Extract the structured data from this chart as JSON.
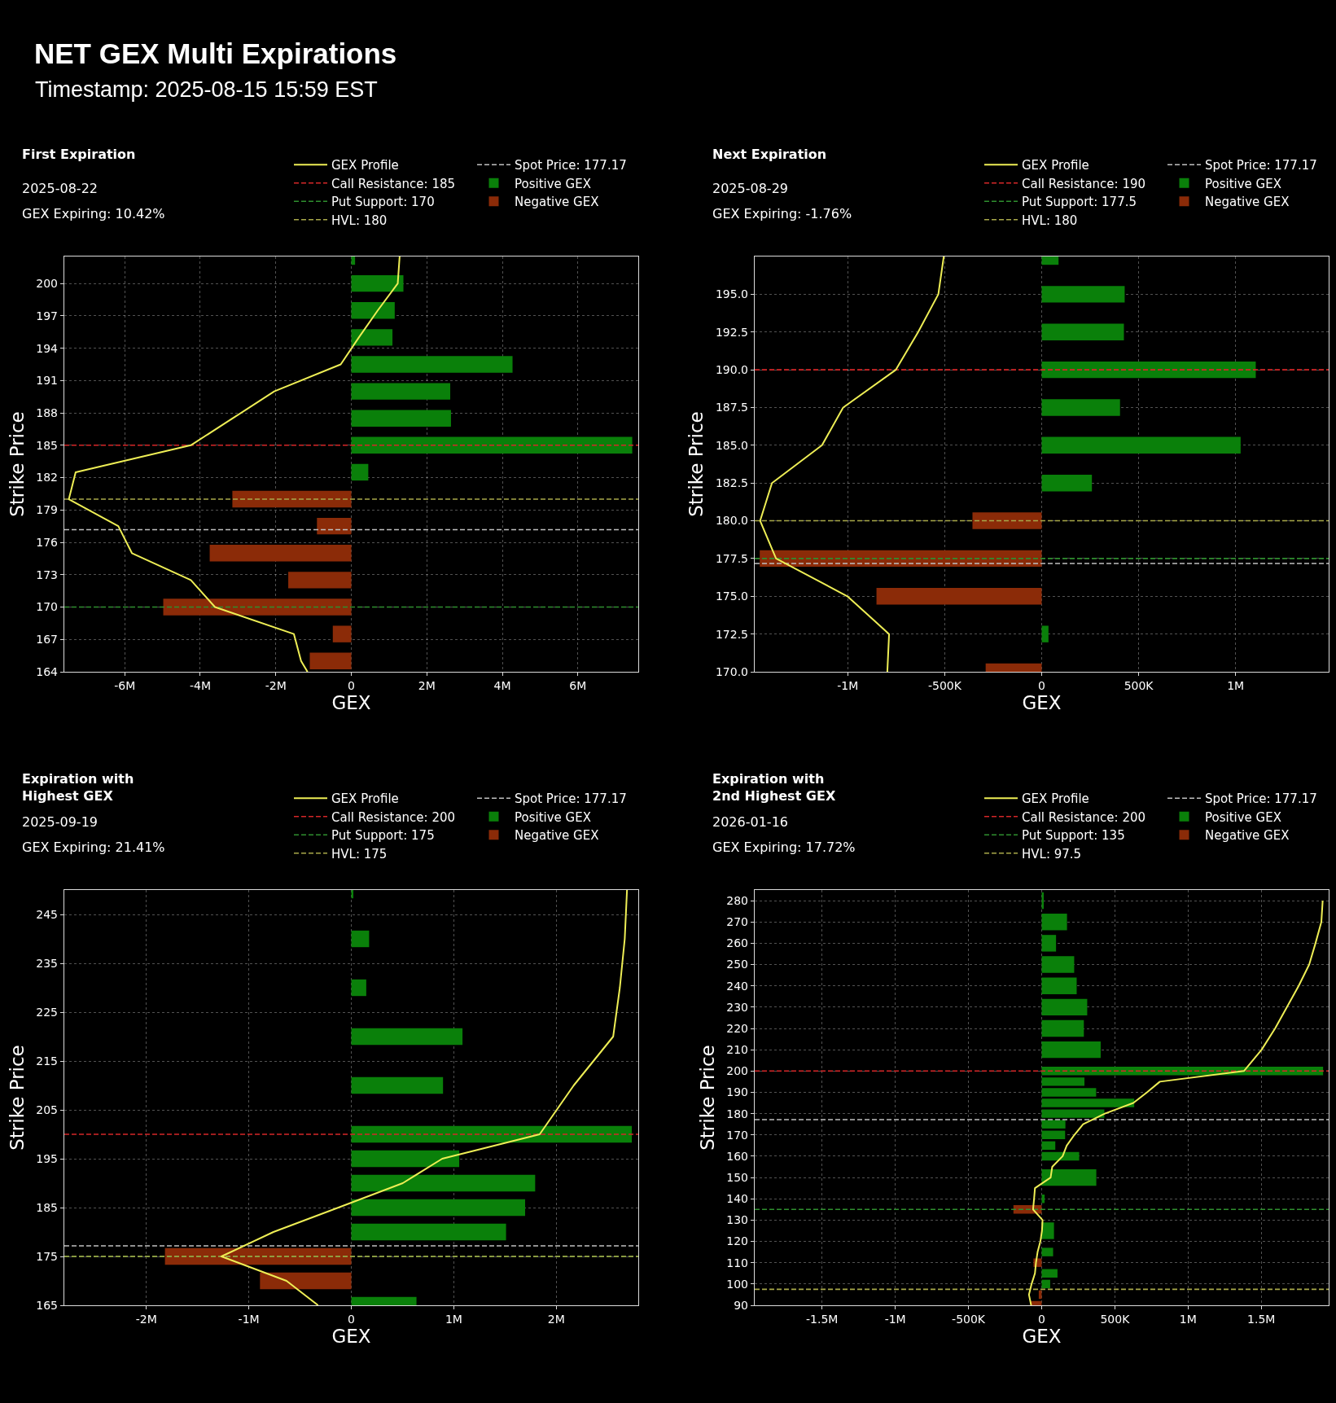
{
  "chart_data": [
    {
      "type": "other",
      "title": "NET GEX Multi Expirations",
      "subtitle": "Timestamp: 2025-08-15 15:59 EST"
    },
    {
      "type": "bar",
      "orientation": "horizontal",
      "title": "First Expiration",
      "subtitle": "2025-08-22",
      "annotations": [
        "GEX Expiring: 10.42%"
      ],
      "xlabel": "GEX",
      "ylabel": "Strike Price",
      "x": [
        165,
        167.5,
        170,
        172.5,
        175,
        177.5,
        180,
        182.5,
        185,
        187.5,
        190,
        192.5,
        195,
        197.5,
        200,
        202.5
      ],
      "series": [
        {
          "name": "GEX Profile",
          "type": "line",
          "color": "#eeee55",
          "x": [
            164,
            165,
            167.5,
            170,
            172.5,
            175,
            177.5,
            180,
            182.5,
            185,
            187.5,
            190,
            192.5,
            195,
            197.5,
            200,
            202.5
          ],
          "values": [
            -1160000,
            -1330000,
            -1520000,
            -3610000,
            -4250000,
            -5810000,
            -6170000,
            -7480000,
            -7300000,
            -4250000,
            -3140000,
            -2040000,
            -280000,
            200000,
            700000,
            1230000,
            1280000
          ]
        },
        {
          "name": "Positive GEX",
          "color": "#0a800a",
          "values": [
            null,
            null,
            null,
            null,
            null,
            null,
            null,
            450000,
            7440000,
            2640000,
            2620000,
            4270000,
            1090000,
            1150000,
            1380000,
            100000
          ]
        },
        {
          "name": "Negative GEX",
          "color": "#8b2b08",
          "values": [
            -1100000,
            -490000,
            -4980000,
            -1670000,
            -3750000,
            -910000,
            -3150000,
            null,
            null,
            null,
            null,
            null,
            null,
            null,
            null,
            null
          ]
        }
      ],
      "ref_lines": [
        {
          "axis": "y",
          "value": 185,
          "label": "Call Resistance: 185",
          "color": "#d62728",
          "line_style": "dashed"
        },
        {
          "axis": "y",
          "value": 170,
          "label": "Put Support: 170",
          "color": "#2f8f2f",
          "line_style": "dashed"
        },
        {
          "axis": "y",
          "value": 180,
          "label": "HVL: 180",
          "color": "#a9a94a",
          "line_style": "dashed"
        },
        {
          "axis": "y",
          "value": 177.17,
          "label": "Spot Price: 177.17",
          "color": "#c0c0c0",
          "line_style": "dashed"
        }
      ],
      "xlim": [
        -7600000,
        7600000
      ],
      "xticks": [
        {
          "value": -6000000,
          "label": "-6M"
        },
        {
          "value": -4000000,
          "label": "-4M"
        },
        {
          "value": -2000000,
          "label": "-2M"
        },
        0,
        {
          "value": 2000000,
          "label": "2M"
        },
        {
          "value": 4000000,
          "label": "4M"
        },
        {
          "value": 6000000,
          "label": "6M"
        }
      ],
      "ylim": [
        164,
        202.5
      ],
      "yticks": [
        164,
        167,
        170,
        173,
        176,
        179,
        182,
        185,
        188,
        191,
        194,
        197,
        200
      ],
      "grid": true,
      "legend": "top right"
    },
    {
      "type": "bar",
      "orientation": "horizontal",
      "title": "Next Expiration",
      "subtitle": "2025-08-29",
      "annotations": [
        "GEX Expiring: -1.76%"
      ],
      "xlabel": "GEX",
      "ylabel": "Strike Price",
      "x": [
        170,
        172.5,
        175,
        177.5,
        180,
        182.5,
        185,
        187.5,
        190,
        192.5,
        195,
        197.5
      ],
      "series": [
        {
          "name": "GEX Profile",
          "type": "line",
          "color": "#eeee55",
          "x": [
            170,
            172.5,
            175,
            177.5,
            180,
            182.5,
            185,
            187.5,
            190,
            192.5,
            195,
            197.5
          ],
          "values": [
            -796000,
            -787000,
            -1002000,
            -1370000,
            -1452000,
            -1391000,
            -1133000,
            -1024000,
            -752000,
            -637000,
            -533000,
            -505000
          ]
        },
        {
          "name": "Positive GEX",
          "color": "#0a800a",
          "values": [
            null,
            35000,
            null,
            null,
            null,
            259000,
            1026000,
            404000,
            1104000,
            424000,
            428000,
            87000
          ]
        },
        {
          "name": "Negative GEX",
          "color": "#8b2b08",
          "values": [
            -289000,
            null,
            -852000,
            -1454000,
            -357000,
            null,
            null,
            null,
            null,
            null,
            null,
            null
          ]
        }
      ],
      "ref_lines": [
        {
          "axis": "y",
          "value": 190,
          "label": "Call Resistance: 190",
          "color": "#d62728",
          "line_style": "dashed"
        },
        {
          "axis": "y",
          "value": 177.5,
          "label": "Put Support: 177.5",
          "color": "#2f8f2f",
          "line_style": "dashed"
        },
        {
          "axis": "y",
          "value": 180,
          "label": "HVL: 180",
          "color": "#a9a94a",
          "line_style": "dashed"
        },
        {
          "axis": "y",
          "value": 177.17,
          "label": "Spot Price: 177.17",
          "color": "#c0c0c0",
          "line_style": "dashed"
        }
      ],
      "xlim": [
        -1480000,
        1480000
      ],
      "xticks": [
        {
          "value": -1000000,
          "label": "-1M"
        },
        {
          "value": -500000,
          "label": "-500K"
        },
        0,
        {
          "value": 500000,
          "label": "500K"
        },
        {
          "value": 1000000,
          "label": "1M"
        }
      ],
      "ylim": [
        170,
        197.5
      ],
      "yticks": [
        {
          "value": 170,
          "label": "170.0"
        },
        172.5,
        {
          "value": 175,
          "label": "175.0"
        },
        177.5,
        {
          "value": 180,
          "label": "180.0"
        },
        182.5,
        {
          "value": 185,
          "label": "185.0"
        },
        187.5,
        {
          "value": 190,
          "label": "190.0"
        },
        192.5,
        {
          "value": 195,
          "label": "195.0"
        }
      ],
      "grid": true,
      "legend": "top right"
    },
    {
      "type": "bar",
      "orientation": "horizontal",
      "title": "Expiration with\nHighest GEX",
      "subtitle": "2025-09-19",
      "annotations": [
        "GEX Expiring: 21.41%"
      ],
      "xlabel": "GEX",
      "ylabel": "Strike Price",
      "x": [
        165,
        170,
        175,
        180,
        185,
        190,
        195,
        200,
        210,
        220,
        230,
        240,
        250
      ],
      "series": [
        {
          "name": "GEX Profile",
          "type": "line",
          "color": "#eeee55",
          "x": [
            165,
            170,
            175,
            180,
            185,
            190,
            195,
            200,
            210,
            220,
            230,
            240,
            250
          ],
          "values": [
            -324000,
            -632000,
            -1267000,
            -760000,
            -126000,
            502000,
            887000,
            1838000,
            2170000,
            2555000,
            2620000,
            2668000,
            2690000
          ]
        },
        {
          "name": "Positive GEX",
          "color": "#0a800a",
          "values": [
            636000,
            null,
            null,
            1510000,
            1696000,
            1794000,
            1053000,
            2737000,
            895000,
            1085000,
            146000,
            174000,
            20000
          ]
        },
        {
          "name": "Negative GEX",
          "color": "#8b2b08",
          "values": [
            null,
            -891000,
            -1818000,
            null,
            null,
            null,
            null,
            null,
            null,
            null,
            null,
            null,
            null
          ]
        }
      ],
      "ref_lines": [
        {
          "axis": "y",
          "value": 200,
          "label": "Call Resistance: 200",
          "color": "#d62728",
          "line_style": "dashed"
        },
        {
          "axis": "y",
          "value": 175,
          "label": "Put Support: 175",
          "color": "#2f8f2f",
          "line_style": "dashed"
        },
        {
          "axis": "y",
          "value": 175,
          "label": "HVL: 175",
          "color": "#a9a94a",
          "line_style": "dashed"
        },
        {
          "axis": "y",
          "value": 177.17,
          "label": "Spot Price: 177.17",
          "color": "#c0c0c0",
          "line_style": "dashed"
        }
      ],
      "xlim": [
        -2800000,
        2800000
      ],
      "xticks": [
        {
          "value": -2000000,
          "label": "-2M"
        },
        {
          "value": -1000000,
          "label": "-1M"
        },
        0,
        {
          "value": 1000000,
          "label": "1M"
        },
        {
          "value": 2000000,
          "label": "2M"
        }
      ],
      "ylim": [
        165,
        250
      ],
      "yticks": [
        165,
        175,
        185,
        195,
        205,
        215,
        225,
        235,
        245
      ],
      "grid": true,
      "legend": "top right"
    },
    {
      "type": "bar",
      "orientation": "horizontal",
      "title": "Expiration with\n2nd Highest GEX",
      "subtitle": "2026-01-16",
      "annotations": [
        "GEX Expiring: 17.72%"
      ],
      "xlabel": "GEX",
      "ylabel": "Strike Price",
      "x": [
        90,
        95,
        100,
        105,
        110,
        115,
        125,
        135,
        140,
        150,
        160,
        165,
        170,
        175,
        180,
        185,
        190,
        195,
        200,
        210,
        220,
        230,
        240,
        250,
        260,
        270,
        280
      ],
      "series": [
        {
          "name": "GEX Profile",
          "type": "line",
          "color": "#eeee55",
          "x": [
            90,
            95,
            100,
            105,
            110,
            115,
            120,
            125,
            130,
            135,
            140,
            145,
            150,
            155,
            160,
            165,
            170,
            175,
            180,
            185,
            190,
            195,
            200,
            210,
            220,
            230,
            240,
            250,
            260,
            270,
            280
          ],
          "values": [
            -72000,
            -87000,
            -69000,
            -46000,
            -39000,
            -28000,
            -9000,
            2000,
            6000,
            -59000,
            -52000,
            -46000,
            61000,
            72000,
            143000,
            171000,
            223000,
            283000,
            431000,
            626000,
            719000,
            807000,
            1381000,
            1502000,
            1594000,
            1675000,
            1755000,
            1827000,
            1870000,
            1910000,
            1919000
          ]
        },
        {
          "name": "Positive GEX",
          "color": "#0a800a",
          "values": [
            null,
            null,
            58000,
            108000,
            null,
            78000,
            84000,
            null,
            20000,
            373000,
            256000,
            93000,
            160000,
            162000,
            428000,
            632000,
            372000,
            292000,
            1922000,
            403000,
            288000,
            311000,
            239000,
            222000,
            98000,
            173000,
            14000
          ]
        },
        {
          "name": "Negative GEX",
          "color": "#8b2b08",
          "values": [
            -72000,
            -20000,
            null,
            null,
            -56000,
            null,
            null,
            -193000,
            null,
            null,
            null,
            null,
            null,
            null,
            null,
            null,
            null,
            null,
            null,
            null,
            null,
            null,
            null,
            null,
            null,
            null,
            null
          ]
        }
      ],
      "ref_lines": [
        {
          "axis": "y",
          "value": 200,
          "label": "Call Resistance: 200",
          "color": "#d62728",
          "line_style": "dashed"
        },
        {
          "axis": "y",
          "value": 135,
          "label": "Put Support: 135",
          "color": "#2f8f2f",
          "line_style": "dashed"
        },
        {
          "axis": "y",
          "value": 97.5,
          "label": "HVL: 97.5",
          "color": "#a9a94a",
          "line_style": "dashed"
        },
        {
          "axis": "y",
          "value": 177.17,
          "label": "Spot Price: 177.17",
          "color": "#c0c0c0",
          "line_style": "dashed"
        }
      ],
      "xlim": [
        -1960000,
        1960000
      ],
      "xticks": [
        {
          "value": -1500000,
          "label": "-1.5M"
        },
        {
          "value": -1000000,
          "label": "-1M"
        },
        {
          "value": -500000,
          "label": "-500K"
        },
        0,
        {
          "value": 500000,
          "label": "500K"
        },
        {
          "value": 1000000,
          "label": "1M"
        },
        {
          "value": 1500000,
          "label": "1.5M"
        }
      ],
      "ylim": [
        90,
        285
      ],
      "yticks": [
        90,
        100,
        110,
        120,
        130,
        140,
        150,
        160,
        170,
        180,
        190,
        200,
        210,
        220,
        230,
        240,
        250,
        260,
        270,
        280
      ],
      "grid": true,
      "legend": "top right"
    }
  ]
}
